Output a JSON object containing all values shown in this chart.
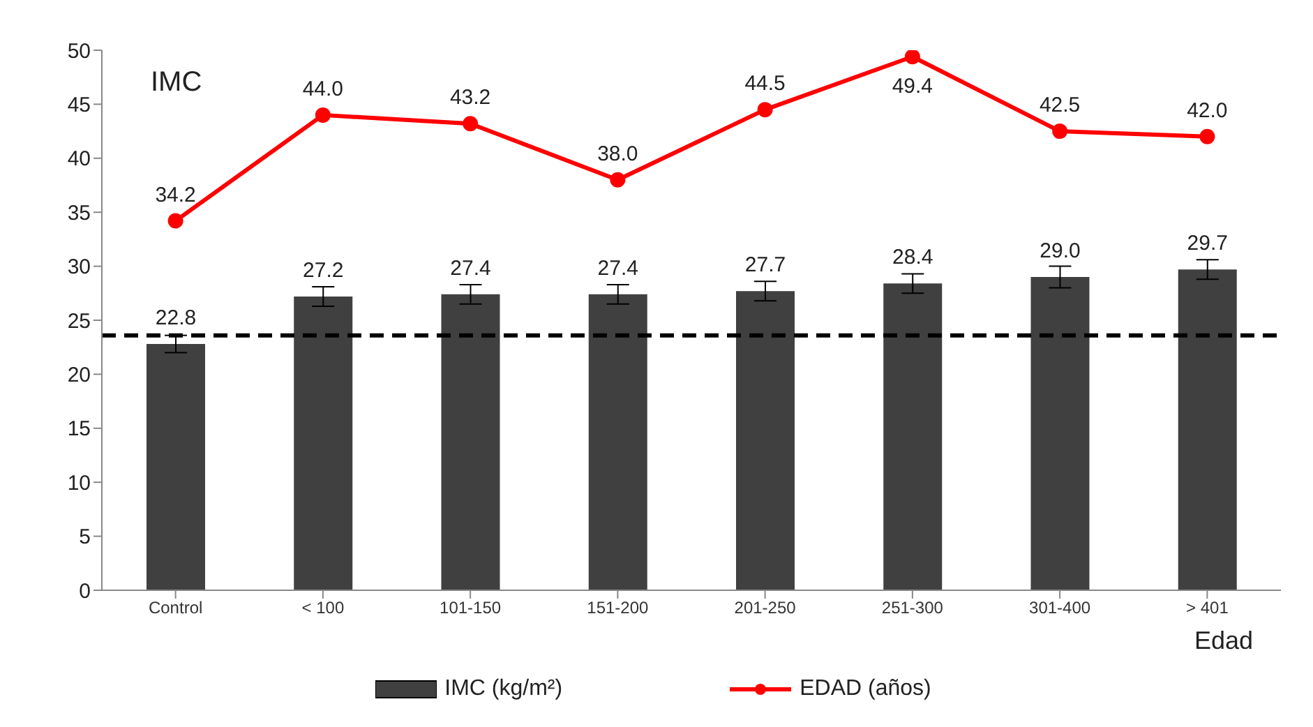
{
  "chart_data": {
    "type": "bar",
    "ylabel": "IMC",
    "xlabel": "Edad",
    "categories": [
      "Control",
      "< 100",
      "101-150",
      "151-200",
      "201-250",
      "251-300",
      "301-400",
      "> 401"
    ],
    "series": [
      {
        "name": "IMC (kg/m²)",
        "color": "#404040",
        "values": [
          22.8,
          27.2,
          27.4,
          27.4,
          27.7,
          28.4,
          29.0,
          29.7
        ],
        "errors": [
          0.8,
          0.9,
          0.9,
          0.9,
          0.9,
          0.9,
          1.0,
          0.9
        ],
        "value_labels": [
          "22.8",
          "27.2",
          "27.4",
          "27.4",
          "27.7",
          "28.4",
          "29.0",
          "29.7"
        ]
      },
      {
        "name": "EDAD (años)",
        "type": "line",
        "color": "#ff0000",
        "values": [
          34.2,
          44.0,
          43.2,
          38.0,
          44.5,
          49.4,
          42.5,
          42.0
        ],
        "marker": "circle",
        "value_labels": [
          "34.2",
          "44.0",
          "43.2",
          "38.0",
          "44.5",
          "49.4",
          "42.5",
          "42.0"
        ]
      }
    ],
    "ylim": [
      0,
      50
    ],
    "yticks": [
      0,
      5,
      10,
      15,
      20,
      25,
      30,
      35,
      40,
      45,
      50
    ],
    "ref_lines": [
      {
        "axis": "y",
        "value": 23.6,
        "color": "#000000",
        "line_style": "dashed"
      }
    ],
    "legend": "bottom",
    "grid": false
  }
}
